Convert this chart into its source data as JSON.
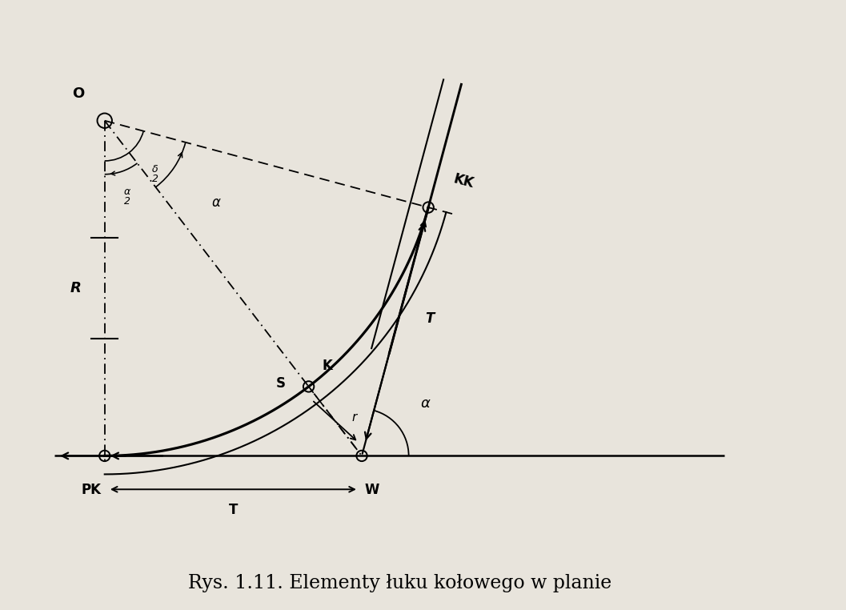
{
  "bg_color": "#e8e4dc",
  "title": "Rys. 1.11. Elementy łuku kołowego w planie",
  "title_fontsize": 17,
  "alpha_deg": 75.0,
  "R": 1.0,
  "layout": {
    "xlim": [
      -0.3,
      2.2
    ],
    "ylim": [
      -0.45,
      1.35
    ],
    "figsize": [
      10.57,
      7.62
    ],
    "dpi": 100
  },
  "lw_main": 1.8,
  "lw_dash": 1.3,
  "lw_thin": 1.2,
  "marker_size": 5
}
